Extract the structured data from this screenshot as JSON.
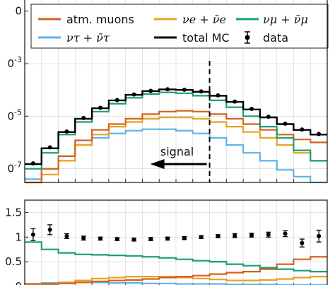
{
  "chart_data": [
    {
      "type": "line",
      "panel": "main",
      "yscale": "log",
      "y_tick_labels": [
        "0",
        "0^{-3}",
        "0^{-5}",
        "0^{-7}"
      ],
      "y_tick_values": [
        0.1,
        0.001,
        1e-05,
        1e-07
      ],
      "ylim": [
        3e-08,
        0.3
      ],
      "xlim": [
        0,
        18
      ],
      "grid": true,
      "legend": {
        "placement": "top",
        "entries": [
          {
            "key": "muons",
            "label": "atm. muons",
            "color": "#d6601c"
          },
          {
            "key": "nue",
            "label": "νe + ν̄e",
            "color": "#e8a11e"
          },
          {
            "key": "numu",
            "label": "νμ + ν̄μ",
            "color": "#1a9f75"
          },
          {
            "key": "nutau",
            "label": "ντ + ν̄τ",
            "color": "#5fb3e8"
          },
          {
            "key": "total",
            "label": "total MC",
            "color": "#000000"
          },
          {
            "key": "data",
            "label": "data",
            "color": "#000000"
          }
        ]
      },
      "annotation": {
        "label": "signal",
        "cut_x": 11,
        "arrow": "left"
      },
      "series": [
        {
          "key": "muons",
          "values": [
            3e-08,
            1e-07,
            3e-07,
            1.2e-06,
            3e-06,
            5e-06,
            8e-06,
            1.2e-05,
            1.5e-05,
            1.6e-05,
            1.5e-05,
            1.2e-05,
            8e-06,
            5e-06,
            3e-06,
            2e-06,
            1.3e-06,
            1e-06
          ]
        },
        {
          "key": "nue",
          "values": [
            3e-08,
            6e-08,
            2e-07,
            8e-07,
            2e-06,
            4e-06,
            6e-06,
            8e-06,
            9e-06,
            9e-06,
            8e-06,
            6e-06,
            4e-06,
            2.5e-06,
            1.5e-06,
            8e-07,
            4e-07,
            2e-07
          ]
        },
        {
          "key": "numu",
          "values": [
            1e-07,
            4e-07,
            2e-06,
            6e-06,
            1.5e-05,
            3e-05,
            5e-05,
            7e-05,
            8e-05,
            7.5e-05,
            6e-05,
            4e-05,
            2.2e-05,
            1e-05,
            4e-06,
            1.5e-06,
            5e-07,
            2e-07
          ]
        },
        {
          "key": "nutau",
          "values": [
            4e-08,
            1e-07,
            3e-07,
            8e-07,
            1.5e-06,
            2.2e-06,
            2.8e-06,
            3.2e-06,
            3.2e-06,
            2.8e-06,
            2.2e-06,
            1.5e-06,
            8e-07,
            4e-07,
            2e-07,
            9e-08,
            5e-08,
            3e-08
          ]
        },
        {
          "key": "total",
          "values": [
            1.5e-07,
            6e-07,
            2.5e-06,
            8e-06,
            2e-05,
            4e-05,
            6.5e-05,
            9e-05,
            0.000105,
            0.0001,
            8.5e-05,
            6e-05,
            3.5e-05,
            1.8e-05,
            9e-06,
            5e-06,
            3e-06,
            2e-06
          ]
        },
        {
          "key": "data",
          "values": [
            1.6e-07,
            6.5e-07,
            2.6e-06,
            8.5e-06,
            2.1e-05,
            4.1e-05,
            6.7e-05,
            9.2e-05,
            0.000106,
            0.000102,
            8.7e-05,
            6.2e-05,
            3.6e-05,
            1.9e-05,
            9.5e-06,
            5.2e-06,
            3.1e-06,
            2.1e-06
          ]
        }
      ]
    },
    {
      "type": "line",
      "panel": "ratio",
      "y_tick_labels": [
        "1.5",
        "1",
        "0.5",
        "0"
      ],
      "y_tick_values": [
        1.5,
        1,
        0.5,
        0
      ],
      "ylim": [
        0,
        1.75
      ],
      "xlim": [
        0,
        18
      ],
      "grid": true,
      "series": [
        {
          "key": "muons",
          "values": [
            0.05,
            0.05,
            0.06,
            0.08,
            0.1,
            0.12,
            0.13,
            0.15,
            0.18,
            0.2,
            0.22,
            0.25,
            0.28,
            0.3,
            0.35,
            0.45,
            0.55,
            0.6
          ]
        },
        {
          "key": "nue",
          "values": [
            0.02,
            0.04,
            0.08,
            0.12,
            0.16,
            0.18,
            0.2,
            0.2,
            0.2,
            0.18,
            0.16,
            0.14,
            0.12,
            0.12,
            0.13,
            0.15,
            0.18,
            0.2
          ]
        },
        {
          "key": "numu",
          "values": [
            0.9,
            0.75,
            0.68,
            0.65,
            0.64,
            0.63,
            0.62,
            0.6,
            0.58,
            0.55,
            0.52,
            0.5,
            0.45,
            0.42,
            0.38,
            0.35,
            0.32,
            0.3
          ]
        },
        {
          "key": "nutau",
          "values": [
            0.05,
            0.07,
            0.08,
            0.08,
            0.08,
            0.07,
            0.07,
            0.06,
            0.06,
            0.05,
            0.05,
            0.05,
            0.04,
            0.04,
            0.04,
            0.03,
            0.03,
            0.03
          ]
        },
        {
          "key": "data",
          "values": [
            1.05,
            1.15,
            1.02,
            0.98,
            0.97,
            0.96,
            0.95,
            0.96,
            0.97,
            0.98,
            1.0,
            1.02,
            1.03,
            1.04,
            1.05,
            1.07,
            0.88,
            1.02
          ],
          "errors": [
            0.12,
            0.1,
            0.05,
            0.04,
            0.03,
            0.03,
            0.03,
            0.03,
            0.03,
            0.03,
            0.03,
            0.03,
            0.04,
            0.04,
            0.05,
            0.06,
            0.08,
            0.12
          ]
        }
      ]
    }
  ]
}
